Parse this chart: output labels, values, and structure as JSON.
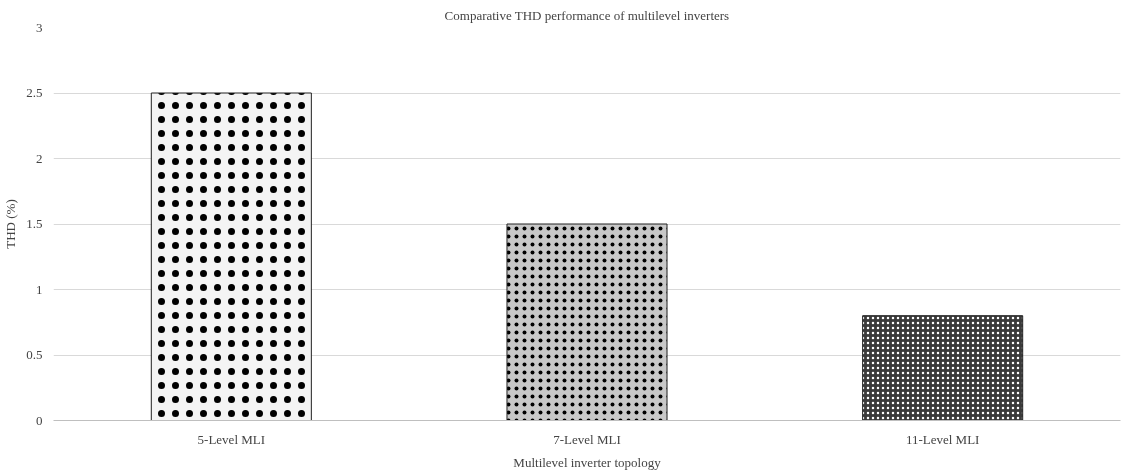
{
  "chart_data": {
    "type": "bar",
    "title": "Comparative THD performance of multilevel inverters",
    "xlabel": "Multilevel inverter topology",
    "ylabel": "THD (%)",
    "categories": [
      "5-Level MLI",
      "7-Level MLI",
      "11-Level MLI"
    ],
    "values": [
      2.5,
      1.5,
      0.8
    ],
    "colors": [
      "#f4f4f4",
      "#c8c8c8",
      "#3a3a3a"
    ],
    "ylim": [
      0,
      3
    ],
    "yticks": [
      0,
      0.5,
      1,
      1.5,
      2,
      2.5,
      3
    ],
    "grid": "y"
  }
}
